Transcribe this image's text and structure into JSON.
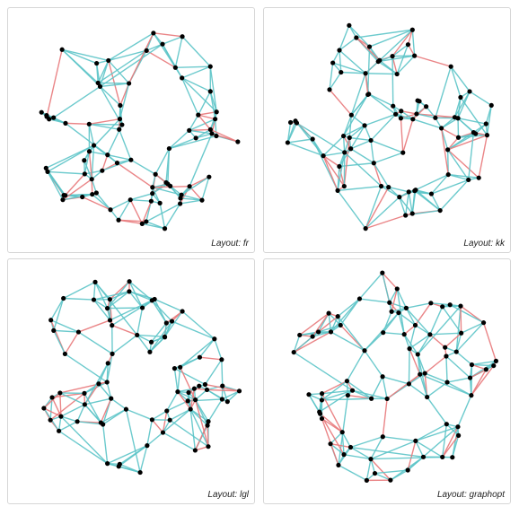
{
  "panels": [
    {
      "label": "Layout: fr"
    },
    {
      "label": "Layout: kk"
    },
    {
      "label": "Layout: lgl"
    },
    {
      "label": "Layout: graphopt"
    }
  ]
}
